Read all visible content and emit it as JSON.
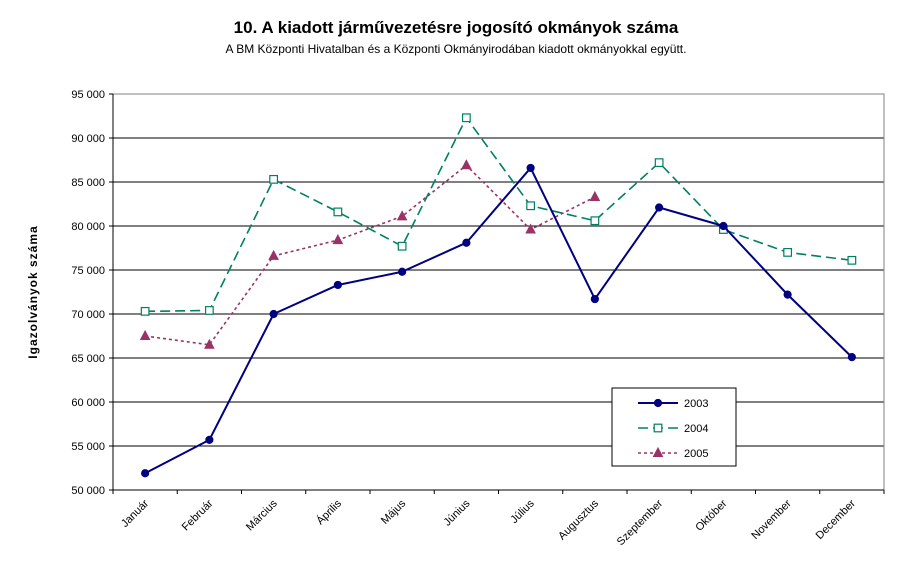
{
  "chart_data": {
    "type": "line",
    "title": "10. A  kiadott járművezetésre  jogosító okmányok száma",
    "subtitle": "A BM Központi Hivatalban és a Központi Okmányirodában kiadott okmányokkal együtt.",
    "xlabel": "",
    "ylabel": "Igazolványok száma",
    "ylim": [
      50000,
      95000
    ],
    "yticks": [
      50000,
      55000,
      60000,
      65000,
      70000,
      75000,
      80000,
      85000,
      90000,
      95000
    ],
    "ytick_labels": [
      "50 000",
      "55 000",
      "60 000",
      "65 000",
      "70 000",
      "75 000",
      "80 000",
      "85 000",
      "90 000",
      "95 000"
    ],
    "grid": true,
    "legend_position": "bottom-right",
    "categories": [
      "Január",
      "Február",
      "Március",
      "Április",
      "Május",
      "Június",
      "Július",
      "Augusztus",
      "Szeptember",
      "Október",
      "November",
      "December"
    ],
    "series": [
      {
        "name": "2003",
        "color": "#000080",
        "marker": "filled-circle",
        "line": "solid",
        "values": [
          51900,
          55700,
          70000,
          73300,
          74800,
          78100,
          86600,
          71700,
          82100,
          80000,
          72200,
          65100
        ]
      },
      {
        "name": "2004",
        "color": "#008060",
        "marker": "open-square",
        "line": "dashed",
        "values": [
          70300,
          70400,
          85300,
          81600,
          77700,
          92300,
          82300,
          80600,
          87200,
          79600,
          77000,
          76100
        ]
      },
      {
        "name": "2005",
        "color": "#993366",
        "marker": "filled-triangle",
        "line": "dotted",
        "values": [
          67500,
          66500,
          76600,
          78400,
          81100,
          86900,
          79600,
          83300,
          null,
          null,
          null,
          null
        ]
      }
    ]
  }
}
